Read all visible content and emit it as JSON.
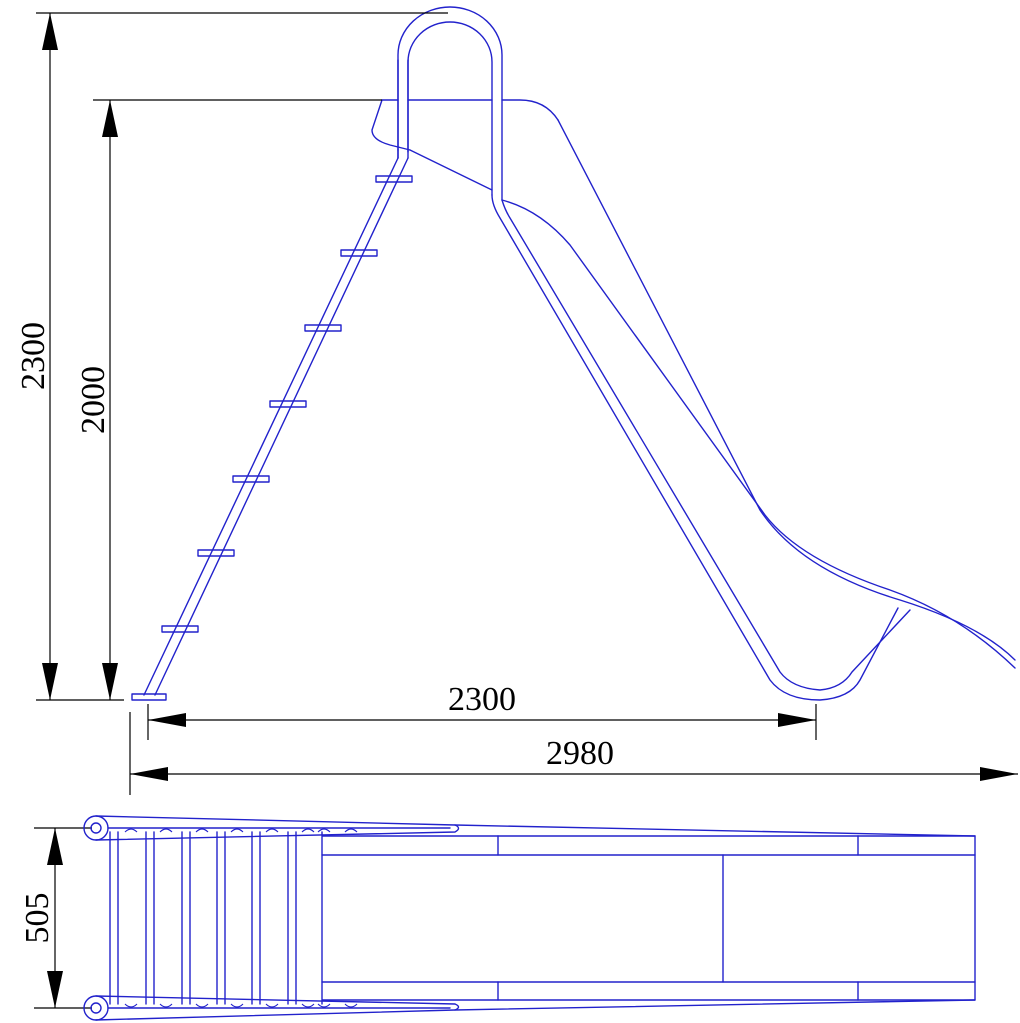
{
  "drawing": {
    "colors": {
      "outline": "#2222cc",
      "dimension": "#000000",
      "background": "#ffffff"
    },
    "dimensions": {
      "total_height": "2300",
      "platform_height": "2000",
      "base_length": "2300",
      "total_length": "2980",
      "width": "505"
    }
  }
}
